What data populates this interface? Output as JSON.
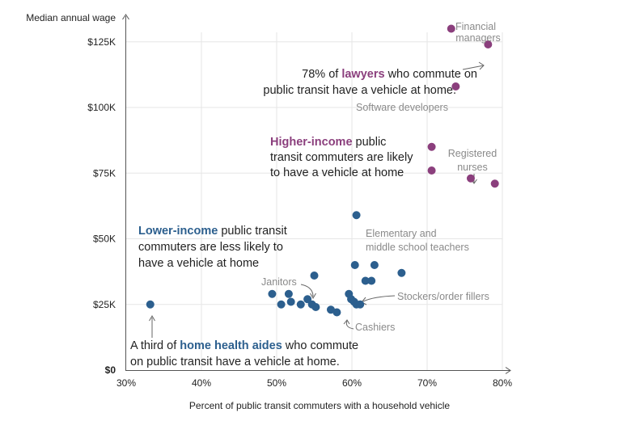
{
  "chart_data": {
    "type": "scatter",
    "xlabel": "Percent of public transit commuters with a household vehicle",
    "ylabel": "Median annual wage",
    "xlim": [
      30,
      80
    ],
    "ylim": [
      0,
      140000
    ],
    "x_ticks": [
      "30%",
      "40%",
      "50%",
      "60%",
      "70%",
      "80%"
    ],
    "y_ticks": [
      "$0",
      "$25K",
      "$50K",
      "$75K",
      "$100K",
      "$125K"
    ],
    "grid": true,
    "colors": {
      "higher_income": "#8b3f7d",
      "lower_income": "#2c5f8e",
      "grid": "#e6e6e6",
      "annotation": "#8a8a8a"
    },
    "series": [
      {
        "group": "higher_income",
        "points": [
          {
            "x": 73.2,
            "y": 130000
          },
          {
            "x": 78.1,
            "y": 124000
          },
          {
            "x": 73.8,
            "y": 108000
          },
          {
            "x": 70.6,
            "y": 85000
          },
          {
            "x": 70.6,
            "y": 76000
          },
          {
            "x": 75.8,
            "y": 73000
          },
          {
            "x": 79.0,
            "y": 71000
          }
        ]
      },
      {
        "group": "lower_income",
        "points": [
          {
            "x": 33.2,
            "y": 25000
          },
          {
            "x": 49.4,
            "y": 29000
          },
          {
            "x": 50.6,
            "y": 25000
          },
          {
            "x": 51.6,
            "y": 29000
          },
          {
            "x": 51.9,
            "y": 26000
          },
          {
            "x": 53.2,
            "y": 25000
          },
          {
            "x": 54.1,
            "y": 27000
          },
          {
            "x": 54.7,
            "y": 25000
          },
          {
            "x": 55.2,
            "y": 24000
          },
          {
            "x": 55.0,
            "y": 36000
          },
          {
            "x": 57.2,
            "y": 23000
          },
          {
            "x": 58.0,
            "y": 22000
          },
          {
            "x": 59.6,
            "y": 29000
          },
          {
            "x": 59.9,
            "y": 27000
          },
          {
            "x": 60.3,
            "y": 26000
          },
          {
            "x": 60.6,
            "y": 25000
          },
          {
            "x": 61.1,
            "y": 25000
          },
          {
            "x": 60.4,
            "y": 40000
          },
          {
            "x": 61.8,
            "y": 34000
          },
          {
            "x": 62.6,
            "y": 34000
          },
          {
            "x": 63.0,
            "y": 40000
          },
          {
            "x": 66.6,
            "y": 37000
          },
          {
            "x": 60.6,
            "y": 59000
          }
        ]
      }
    ],
    "annotations": {
      "financial_managers": [
        "Financial",
        "managers"
      ],
      "software_developers": "Software developers",
      "registered_nurses": [
        "Registered",
        "nurses"
      ],
      "teachers": [
        "Elementary and",
        "middle school teachers"
      ],
      "janitors": "Janitors",
      "stockers": "Stockers/order fillers",
      "cashiers": "Cashiers",
      "lawyers": {
        "line1_pre": "78% of ",
        "line1_hl": "lawyers",
        "line1_post": " who commute on",
        "line2": "public transit have a vehicle at home."
      },
      "higher_income": {
        "line1_hl": "Higher-income",
        "line1_post": " public",
        "line2": "transit commuters are likely",
        "line3": "to have a vehicle at home"
      },
      "lower_income": {
        "line1_hl": "Lower-income",
        "line1_post": " public transit",
        "line2": "commuters are less likely to",
        "line3": "have a vehicle at home"
      },
      "health_aides": {
        "line1_pre": "A third of ",
        "line1_hl": "home health aides",
        "line1_post": " who commute",
        "line2": "on public transit have a vehicle at home."
      }
    }
  }
}
